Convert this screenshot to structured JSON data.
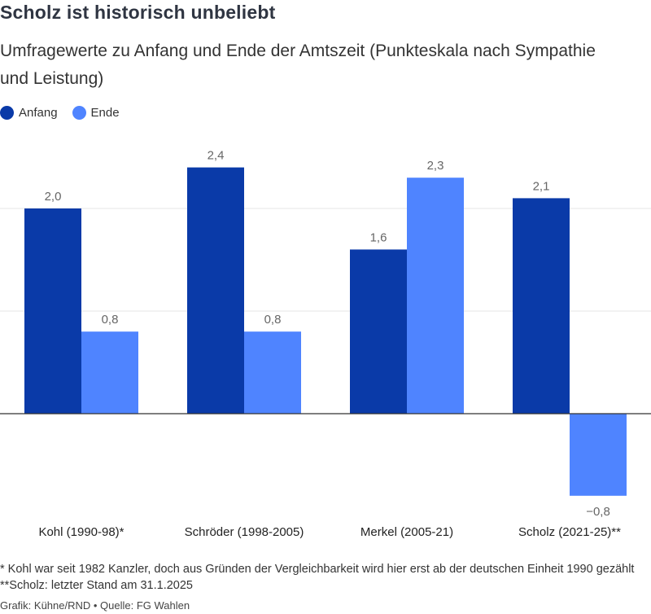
{
  "header": {
    "title": "Scholz ist historisch unbeliebt",
    "subtitle": "Umfragewerte zu Anfang und Ende der Amtszeit (Punkteskala nach Sympathie und Leistung)"
  },
  "colors": {
    "anfang": "#0a3aa8",
    "ende": "#4f84ff",
    "grid": "#e6e6e6",
    "axis": "#333333",
    "label": "#666666"
  },
  "chart_data": {
    "type": "bar",
    "categories": [
      "Kohl (1990-98)*",
      "Schröder (1998-2005)",
      "Merkel (2005-21)",
      "Scholz (2021-25)**"
    ],
    "series": [
      {
        "name": "Anfang",
        "values": [
          2.0,
          2.4,
          1.6,
          2.1
        ],
        "labels": [
          "2,0",
          "2,4",
          "1,6",
          "2,1"
        ]
      },
      {
        "name": "Ende",
        "values": [
          0.8,
          0.8,
          2.3,
          -0.8
        ],
        "labels": [
          "0,8",
          "0,8",
          "2,3",
          "−0,8"
        ]
      }
    ],
    "ylim": [
      -0.8,
      2.4
    ],
    "grid_values": [
      1.0,
      2.0
    ],
    "legend_position": "top-left"
  },
  "footer": {
    "footnote": "* Kohl war seit 1982 Kanzler, doch aus Gründen der Vergleichbarkeit wird hier erst ab der deutschen Einheit 1990 gezählt **Scholz: letzter Stand am 31.1.2025",
    "credit": "Grafik: Kühne/RND • Quelle: FG Wahlen"
  }
}
